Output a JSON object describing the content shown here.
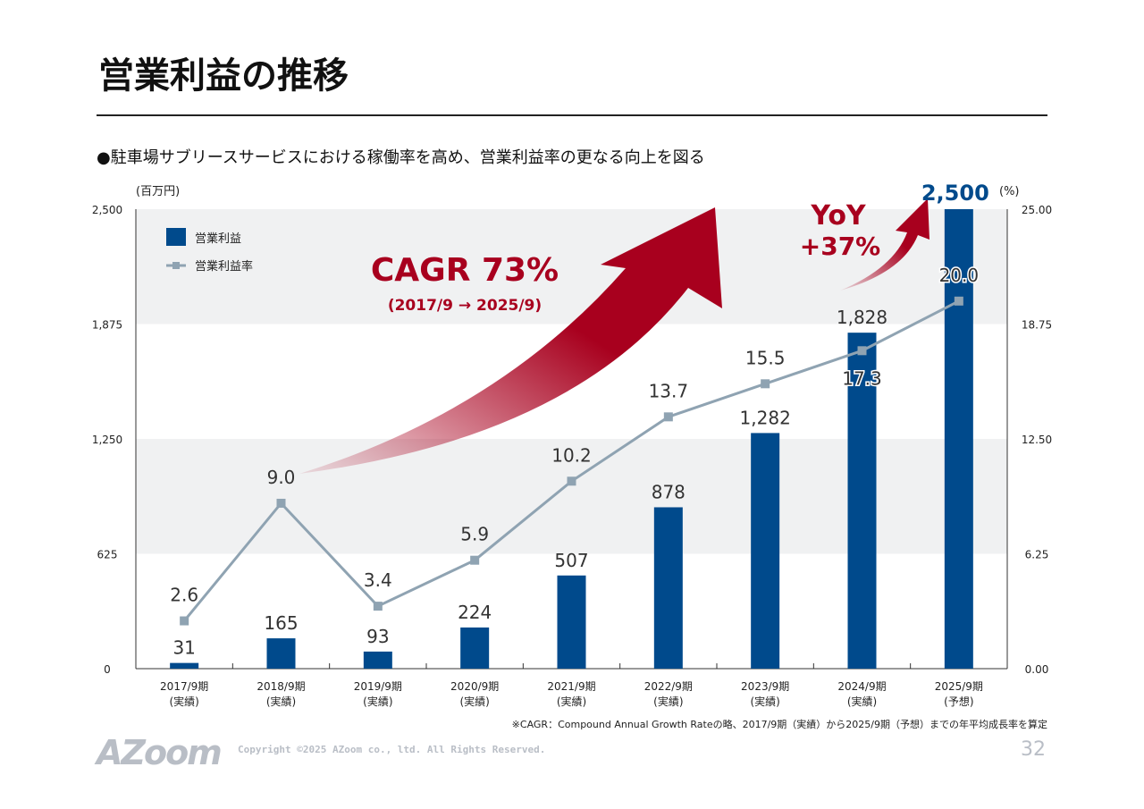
{
  "header": {
    "title": "営業利益の推移",
    "bullet": "●駐車場サブリースサービスにおける稼働率を高め、営業利益率の更なる向上を図る"
  },
  "chart_data": {
    "type": "bar+line",
    "categories": [
      "2017/9期\n(実績)",
      "2018/9期\n(実績)",
      "2019/9期\n(実績)",
      "2020/9期\n(実績)",
      "2021/9期\n(実績)",
      "2022/9期\n(実績)",
      "2023/9期\n(実績)",
      "2024/9期\n(実績)",
      "2025/9期\n(予想)"
    ],
    "series": [
      {
        "name": "営業利益",
        "type": "bar",
        "axis": "left",
        "color": "#004a8c",
        "values": [
          31,
          165,
          93,
          224,
          507,
          878,
          1282,
          1828,
          2500
        ],
        "labels": [
          "31",
          "165",
          "93",
          "224",
          "507",
          "878",
          "1,282",
          "1,828",
          "2,500"
        ]
      },
      {
        "name": "営業利益率",
        "type": "line",
        "axis": "right",
        "color": "#8fa3b2",
        "values": [
          2.6,
          9.0,
          3.4,
          5.9,
          10.2,
          13.7,
          15.5,
          17.3,
          20.0
        ],
        "labels": [
          "2.6",
          "9.0",
          "3.4",
          "5.9",
          "10.2",
          "13.7",
          "15.5",
          "17.3",
          "20.0"
        ]
      }
    ],
    "ylabel_left": "(百万円)",
    "ylabel_right": "(%)",
    "ylim_left": [
      0,
      2500
    ],
    "yticks_left": [
      "0",
      "625",
      "1,250",
      "1,875",
      "2,500"
    ],
    "ylim_right": [
      0,
      25
    ],
    "yticks_right": [
      "0.00",
      "6.25",
      "12.50",
      "18.75",
      "25.00"
    ],
    "legend_placement": "top-left",
    "annotations": {
      "cagr": "CAGR 73%",
      "cagr_sub": "(2017/9 → 2025/9)",
      "yoy": "YoY",
      "yoy_value": "+37%",
      "accent": "#a8001e"
    }
  },
  "footer": {
    "note": "※CAGR：Compound Annual Growth Rateの略、2017/9期（実績）から2025/9期（予想）までの年平均成長率を算定",
    "logo": "AZoom",
    "copyright": "Copyright ©2025 AZoom co., ltd. All Rights Reserved.",
    "page": "32"
  }
}
